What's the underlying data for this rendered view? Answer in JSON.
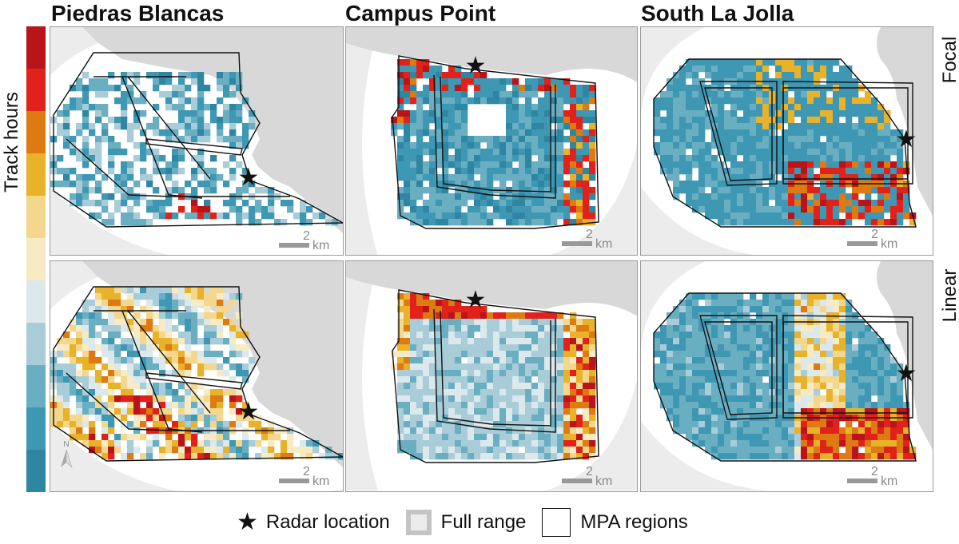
{
  "colorbar": {
    "label": "Track hours",
    "colors": [
      "#b8141a",
      "#e0221a",
      "#dd7a12",
      "#e8b22a",
      "#f2d78c",
      "#f7ebc6",
      "#dbe8ec",
      "#a8ccd8",
      "#6aaec2",
      "#3e98b4",
      "#2f86a2"
    ]
  },
  "colors": {
    "land": "#d8d8d8",
    "full_range": "#ececec",
    "panel_border": "#9a9a9a",
    "mpa_line": "#111111"
  },
  "columns": [
    {
      "key": "pb",
      "title": "Piedras Blancas"
    },
    {
      "key": "cp",
      "title": "Campus Point"
    },
    {
      "key": "slj",
      "title": "South La Jolla"
    }
  ],
  "rows": [
    {
      "key": "focal",
      "label": "Focal"
    },
    {
      "key": "linear",
      "label": "Linear"
    }
  ],
  "scalebar": {
    "value": "2",
    "unit": "km"
  },
  "north_arrow": {
    "label": "N"
  },
  "legend": {
    "radar_symbol": "★",
    "radar_label": "Radar location",
    "full_range_label": "Full range",
    "mpa_label": "MPA regions"
  }
}
